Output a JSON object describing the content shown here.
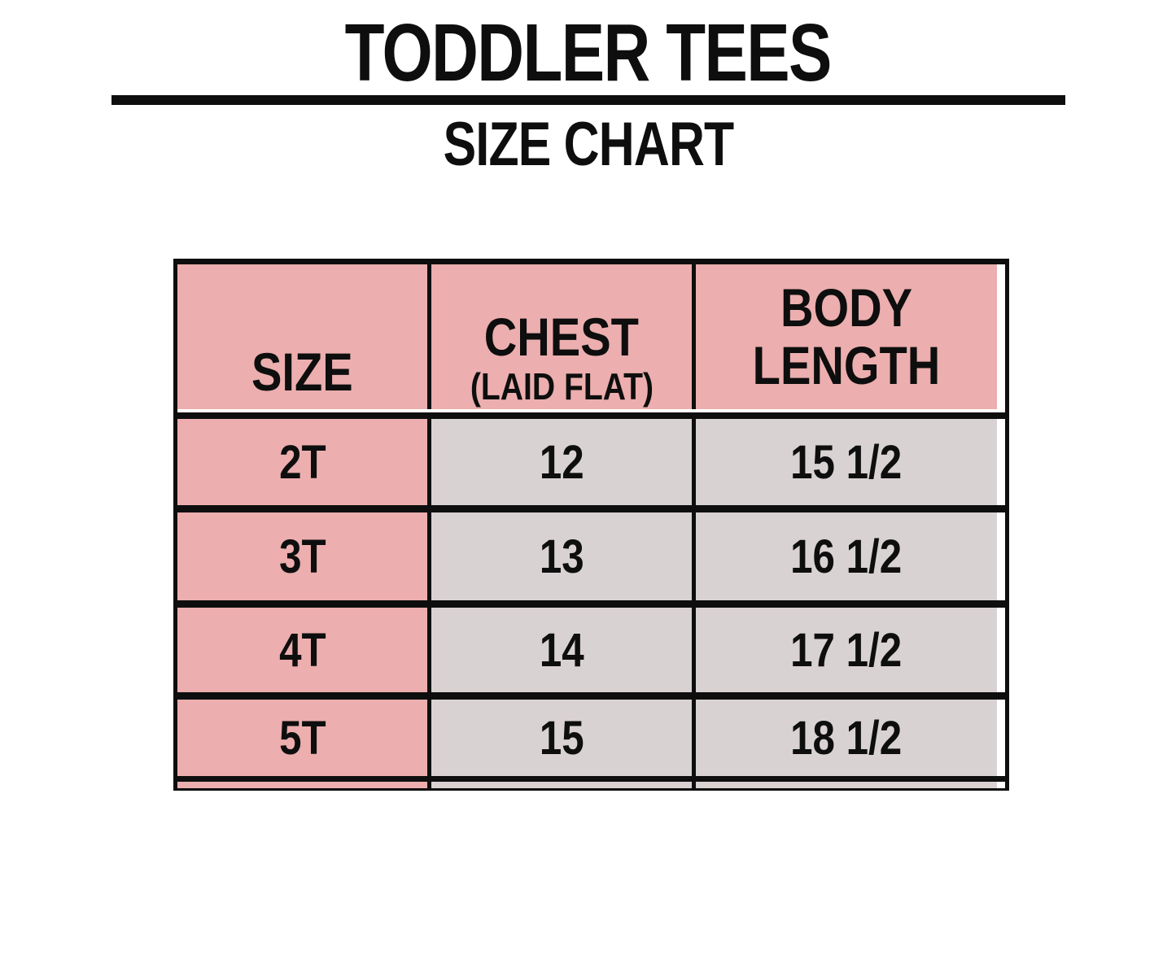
{
  "header": {
    "title": "TODDLER TEES",
    "subtitle": "SIZE CHART"
  },
  "colors": {
    "header_fill": "#ecaeae",
    "size_column_fill": "#ecaeae",
    "data_cell_fill": "#d9d2d2",
    "border": "#0e0e0e",
    "background": "#ffffff"
  },
  "table": {
    "columns": {
      "size": {
        "label": "SIZE"
      },
      "chest": {
        "label": "CHEST",
        "sublabel": "(LAID FLAT)"
      },
      "body_length": {
        "label": "BODY LENGTH"
      }
    },
    "rows": [
      {
        "size": "2T",
        "chest": "12",
        "body_length": "15 1/2"
      },
      {
        "size": "3T",
        "chest": "13",
        "body_length": "16 1/2"
      },
      {
        "size": "4T",
        "chest": "14",
        "body_length": "17 1/2"
      },
      {
        "size": "5T",
        "chest": "15",
        "body_length": "18 1/2"
      }
    ]
  },
  "chart_data": {
    "type": "table",
    "title": "TODDLER TEES",
    "subtitle": "SIZE CHART",
    "columns": [
      "SIZE",
      "CHEST (LAID FLAT)",
      "BODY LENGTH"
    ],
    "rows": [
      [
        "2T",
        "12",
        "15 1/2"
      ],
      [
        "3T",
        "13",
        "16 1/2"
      ],
      [
        "4T",
        "14",
        "17 1/2"
      ],
      [
        "5T",
        "15",
        "18 1/2"
      ]
    ]
  }
}
